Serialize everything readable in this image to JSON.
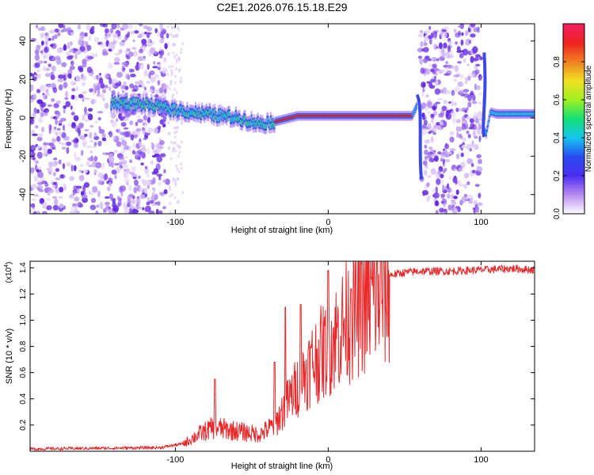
{
  "title": "C2E1.2026.076.15.18.E29",
  "colors": {
    "snr_line": "#e8282a",
    "low_band": "#6a2ee8",
    "ridge": "#d11f3a"
  },
  "chart_data": [
    {
      "type": "heatmap",
      "name": "spectrogram",
      "xlabel": "Height of straight line (km)",
      "ylabel": "Frequency (Hz)",
      "xlim": [
        -195,
        135
      ],
      "ylim": [
        -50,
        49
      ],
      "xticks": [
        -100,
        0,
        100
      ],
      "yticks": [
        -40,
        -20,
        0,
        20,
        40
      ],
      "grid": false,
      "noise_regions": [
        {
          "x": [
            -195,
            -105
          ],
          "density": "dense"
        },
        {
          "x": [
            60,
            100
          ],
          "density": "dense"
        }
      ],
      "ridge": {
        "x": [
          -142,
          -120,
          -100,
          -80,
          -60,
          -45,
          -35,
          -20,
          0,
          20,
          40,
          55,
          60,
          62,
          100,
          103,
          106,
          110,
          135
        ],
        "y": [
          8,
          7,
          4,
          2,
          0,
          -3,
          -2,
          1,
          1,
          1,
          1,
          1,
          10,
          -30,
          30,
          -10,
          3,
          2,
          2
        ]
      },
      "colorbar": {
        "label": "Normalized spectral amplitude",
        "range": [
          0.0,
          1.0
        ],
        "ticks": [
          "0.0",
          "0.2",
          "0.4",
          "0.6",
          "0.8"
        ],
        "colormap": [
          "#ffffff",
          "#b78af0",
          "#4a2ef0",
          "#2a4cf0",
          "#14c8f0",
          "#10e070",
          "#a0f020",
          "#f0e020",
          "#f08020",
          "#f02020",
          "#f02060"
        ]
      }
    },
    {
      "type": "line",
      "name": "snr",
      "xlabel": "Height of straight line (km)",
      "ylabel": "SNR (10 * v/v)",
      "y_scale_label": "(x10",
      "y_scale_exp": "4",
      "y_scale_close": ")",
      "xlim": [
        -195,
        135
      ],
      "ylim": [
        0,
        1.45
      ],
      "xticks": [
        -100,
        0,
        100
      ],
      "yticks": [
        0.2,
        0.4,
        0.6,
        0.8,
        1.0,
        1.2,
        1.4
      ],
      "grid": false,
      "envelope": {
        "x": [
          -195,
          -110,
          -95,
          -85,
          -75,
          -65,
          -55,
          -45,
          -35,
          -28,
          -20,
          -10,
          0,
          10,
          20,
          30,
          40,
          50,
          60,
          80,
          100,
          120,
          135
        ],
        "y": [
          0.02,
          0.03,
          0.06,
          0.14,
          0.2,
          0.18,
          0.16,
          0.14,
          0.22,
          0.38,
          0.55,
          0.75,
          0.88,
          1.05,
          1.2,
          1.3,
          1.35,
          1.37,
          1.38,
          1.38,
          1.39,
          1.4,
          1.39
        ]
      },
      "peaks": [
        {
          "x": -74,
          "y": 0.55
        },
        {
          "x": -35,
          "y": 0.68
        },
        {
          "x": -28,
          "y": 1.1
        },
        {
          "x": -18,
          "y": 1.12
        },
        {
          "x": 0,
          "y": 1.38
        },
        {
          "x": 15,
          "y": 1.24
        }
      ]
    }
  ]
}
